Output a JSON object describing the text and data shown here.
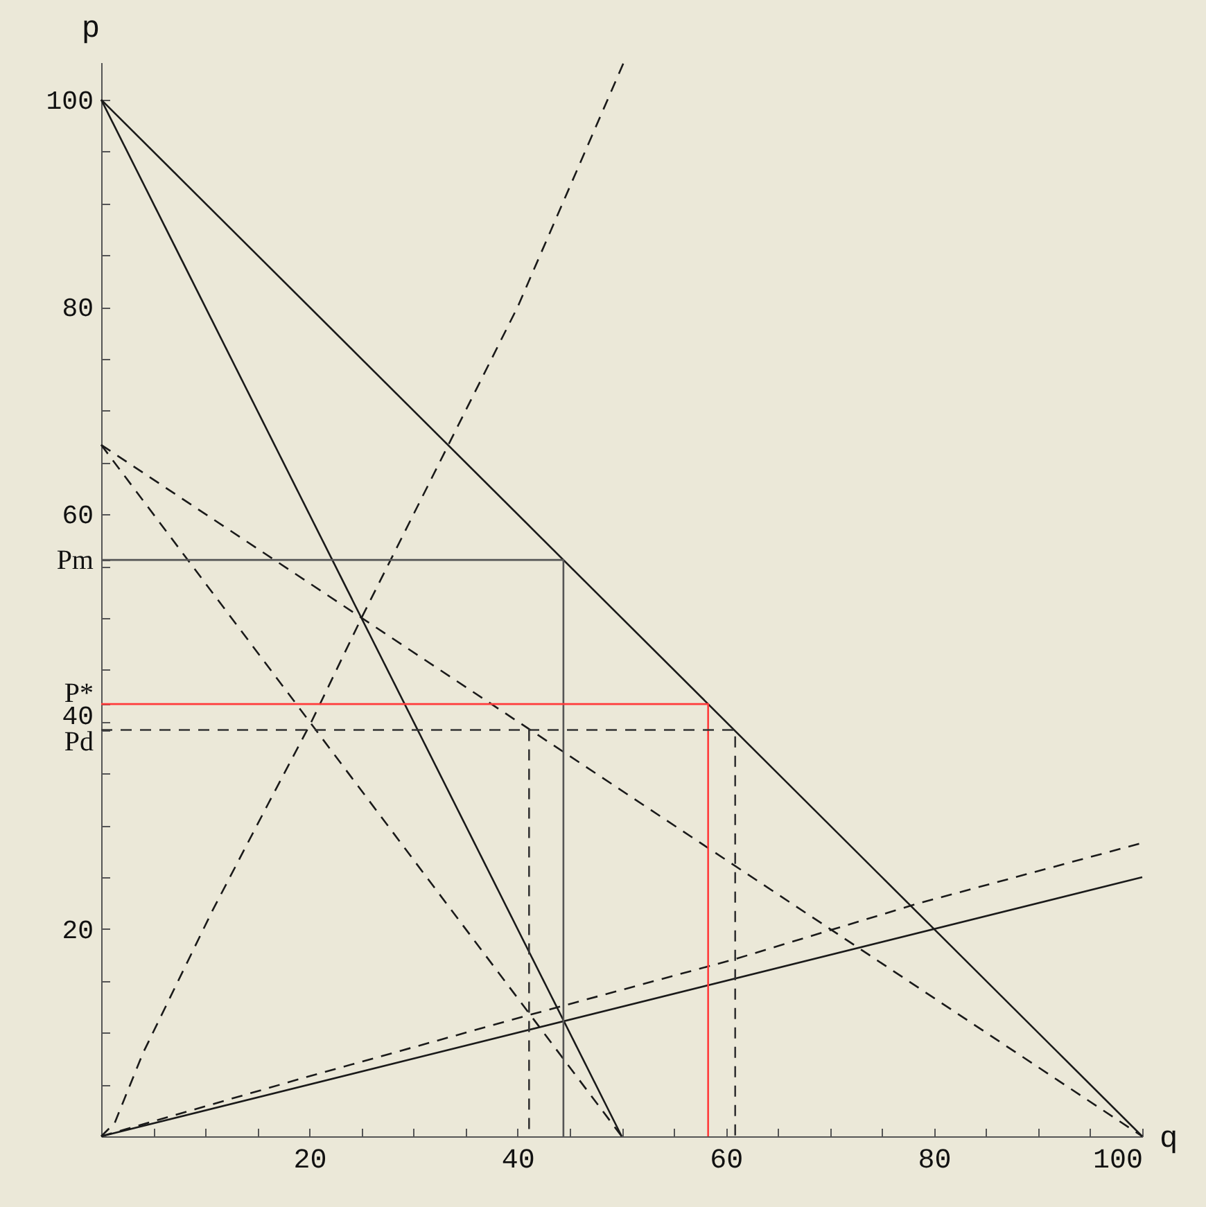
{
  "chart_data": {
    "type": "line",
    "xlabel": "q",
    "ylabel": "p",
    "xlim": [
      0,
      100
    ],
    "ylim": [
      0,
      103.6
    ],
    "xticks": [
      {
        "value": 5,
        "label": null
      },
      {
        "value": 10,
        "label": null
      },
      {
        "value": 15,
        "label": null
      },
      20,
      {
        "value": 25,
        "label": null
      },
      {
        "value": 30,
        "label": null
      },
      {
        "value": 35,
        "label": null
      },
      40,
      {
        "value": 45,
        "label": null
      },
      {
        "value": 50,
        "label": null
      },
      {
        "value": 55,
        "label": null
      },
      60,
      {
        "value": 65,
        "label": null
      },
      {
        "value": 70,
        "label": null
      },
      {
        "value": 75,
        "label": null
      },
      80,
      {
        "value": 85,
        "label": null
      },
      {
        "value": 90,
        "label": null
      },
      {
        "value": 95,
        "label": null
      },
      100
    ],
    "yticks": [
      {
        "value": 5,
        "label": null
      },
      {
        "value": 10,
        "label": null
      },
      {
        "value": 15,
        "label": null
      },
      20,
      {
        "value": 25,
        "label": null
      },
      {
        "value": 30,
        "label": null
      },
      {
        "value": 35,
        "label": null
      },
      {
        "value": 39.2,
        "label": "Pd"
      },
      40,
      {
        "value": 41.7,
        "label": "P*"
      },
      {
        "value": 45,
        "label": null
      },
      {
        "value": 50,
        "label": null
      },
      {
        "value": 55,
        "label": null
      },
      {
        "value": 55.6,
        "label": "Pm"
      },
      60,
      {
        "value": 65,
        "label": null
      },
      {
        "value": 70,
        "label": null
      },
      {
        "value": 75,
        "label": null
      },
      80,
      {
        "value": 85,
        "label": null
      },
      {
        "value": 90,
        "label": null
      },
      {
        "value": 95,
        "label": null
      },
      100
    ],
    "grid": false,
    "marker": "none",
    "series": [
      {
        "color": "#1a1a1a",
        "line_style": "solid",
        "x": [
          0,
          100
        ],
        "values": [
          100,
          0
        ]
      },
      {
        "color": "#1a1a1a",
        "line_style": "solid",
        "x": [
          0,
          50
        ],
        "values": [
          100,
          0
        ]
      },
      {
        "color": "#1a1a1a",
        "line_style": "dashed",
        "x": [
          0,
          1.3,
          4,
          10.7,
          16,
          20.2,
          25,
          33,
          40,
          50.2
        ],
        "values": [
          0,
          1.3,
          8,
          21.8,
          32,
          40,
          50,
          66,
          80,
          103.6
        ]
      },
      {
        "color": "#1a1a1a",
        "line_style": "dashed",
        "x": [
          0,
          100
        ],
        "values": [
          66.7,
          0
        ]
      },
      {
        "color": "#1a1a1a",
        "line_style": "dashed",
        "x": [
          0,
          50
        ],
        "values": [
          66.7,
          0
        ]
      },
      {
        "color": "#1a1a1a",
        "line_style": "solid",
        "x": [
          0,
          100
        ],
        "values": [
          0,
          25
        ]
      },
      {
        "color": "#1a1a1a",
        "line_style": "dashed",
        "x": [
          0,
          20,
          41.1,
          60.9,
          78.6,
          100
        ],
        "values": [
          0,
          5.8,
          11.7,
          17.1,
          22.5,
          28.3
        ]
      },
      {
        "color": "#555555",
        "line_style": "solid",
        "x": [
          0,
          44.4,
          44.4
        ],
        "values": [
          55.6,
          55.6,
          0
        ]
      },
      {
        "color": "#ff3b3b",
        "line_style": "solid",
        "x": [
          0,
          58.3,
          58.3
        ],
        "values": [
          41.7,
          41.7,
          0
        ]
      },
      {
        "color": "#333333",
        "line_style": "dashed",
        "x": [
          0,
          60.9,
          60.9
        ],
        "values": [
          39.2,
          39.2,
          0
        ]
      },
      {
        "color": "#333333",
        "line_style": "dashed",
        "x": [
          41.1,
          41.1
        ],
        "values": [
          39.2,
          0
        ]
      }
    ]
  }
}
